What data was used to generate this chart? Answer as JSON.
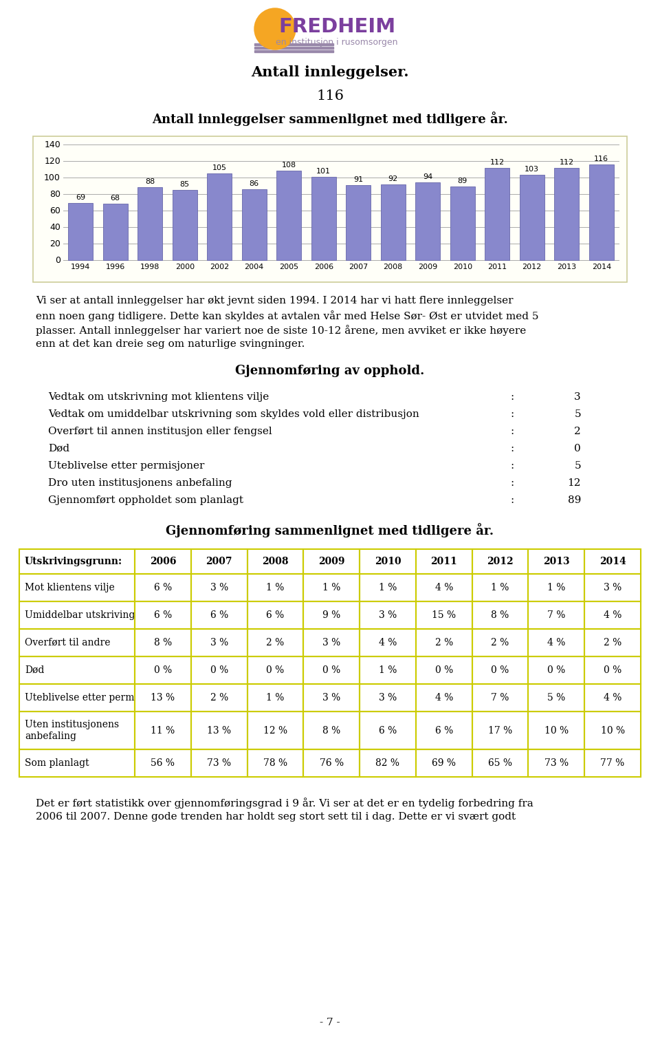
{
  "title_main": "Antall innleggelser.",
  "subtitle_number": "116",
  "chart_title": "Antall innleggelser sammenlignet med tidligere år.",
  "years": [
    1994,
    1996,
    1998,
    2000,
    2002,
    2004,
    2005,
    2006,
    2007,
    2008,
    2009,
    2010,
    2011,
    2012,
    2013,
    2014
  ],
  "values": [
    69,
    68,
    88,
    85,
    105,
    86,
    108,
    101,
    91,
    92,
    94,
    89,
    112,
    103,
    112,
    116
  ],
  "bar_color": "#8888cc",
  "bar_edge_color": "#6666aa",
  "chart_bg": "#fffff8",
  "chart_border": "#cccc99",
  "ylim": [
    0,
    140
  ],
  "yticks": [
    0,
    20,
    40,
    60,
    80,
    100,
    120,
    140
  ],
  "paragraph1": "Vi ser at antall innleggelser har økt jevnt siden 1994. I 2014 har vi hatt flere innleggelser enn noen gang tidligere. Dette kan skyldes at avtalen vår med Helse Sør- Øst er utvidet med 5 plasser. Antall innleggelser har variert noe de siste 10-12 årene, men avviket er ikke høyere enn at det kan dreie seg om naturlige svingninger.",
  "section_title1": "Gjennomføring av opphold.",
  "discharge_labels": [
    "Vedtak om utskrivning mot klientens vilje",
    "Vedtak om umiddelbar utskrivning som skyldes vold eller distribusjon",
    "Overført til annen institusjon eller fengsel",
    "Død",
    "Uteblivelse etter permisjoner",
    "Dro uten institusjonens anbefaling",
    "Gjennomført oppholdet som planlagt"
  ],
  "discharge_values": [
    3,
    5,
    2,
    0,
    5,
    12,
    89
  ],
  "section_title2": "Gjennomføring sammenlignet med tidligere år.",
  "table_headers": [
    "Utskrivingsgrunn:",
    "2006",
    "2007",
    "2008",
    "2009",
    "2010",
    "2011",
    "2012",
    "2013",
    "2014"
  ],
  "table_rows": [
    [
      "Mot klientens vilje",
      "6 %",
      "3 %",
      "1 %",
      "1 %",
      "1 %",
      "4 %",
      "1 %",
      "1 %",
      "3 %"
    ],
    [
      "Umiddelbar utskriving",
      "6 %",
      "6 %",
      "6 %",
      "9 %",
      "3 %",
      "15 %",
      "8 %",
      "7 %",
      "4 %"
    ],
    [
      "Overført til andre",
      "8 %",
      "3 %",
      "2 %",
      "3 %",
      "4 %",
      "2 %",
      "2 %",
      "4 %",
      "2 %"
    ],
    [
      "Død",
      "0 %",
      "0 %",
      "0 %",
      "0 %",
      "1 %",
      "0 %",
      "0 %",
      "0 %",
      "0 %"
    ],
    [
      "Uteblivelse etter perm",
      "13 %",
      "2 %",
      "1 %",
      "3 %",
      "3 %",
      "4 %",
      "7 %",
      "5 %",
      "4 %"
    ],
    [
      "Uten institusjonens\nanbefaling",
      "11 %",
      "13 %",
      "12 %",
      "8 %",
      "6 %",
      "6 %",
      "17 %",
      "10 %",
      "10 %"
    ],
    [
      "Som planlagt",
      "56 %",
      "73 %",
      "78 %",
      "76 %",
      "82 %",
      "69 %",
      "65 %",
      "73 %",
      "77 %"
    ]
  ],
  "table_border_color": "#cccc00",
  "paragraph2": "Det er ført statistikk over gjennomføringsgrad i 9 år. Vi ser at det er en tydelig forbedring fra 2006 til 2007. Denne gode trenden har holdt seg stort sett til i dag. Dette er vi svært godt",
  "page_number": "- 7 -",
  "bg_color": "#ffffff"
}
